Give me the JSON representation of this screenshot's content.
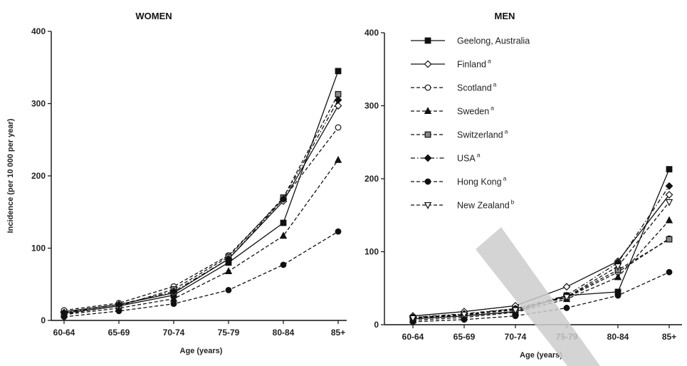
{
  "chart_data": [
    {
      "type": "line",
      "title": "WOMEN",
      "xlabel": "Age (years)",
      "ylabel": "Incidence (per 10 000 per year)",
      "categories": [
        "60-64",
        "65-69",
        "70-74",
        "75-79",
        "80-84",
        "85+"
      ],
      "ylim": [
        0,
        400
      ],
      "yticks": [
        "0",
        "100",
        "200",
        "300",
        "400"
      ],
      "series": [
        {
          "name": "Geelong, Australia",
          "marker": "square-filled",
          "dash": "solid",
          "values": [
            10,
            20,
            35,
            80,
            135,
            345
          ]
        },
        {
          "name": "Finland",
          "sup": "a",
          "marker": "diamond-open",
          "dash": "solid",
          "values": [
            12,
            22,
            38,
            85,
            165,
            297
          ]
        },
        {
          "name": "Scotland",
          "sup": "a",
          "marker": "circle-open",
          "dash": "dashed",
          "values": [
            14,
            24,
            47,
            90,
            168,
            267
          ]
        },
        {
          "name": "Sweden",
          "sup": "a",
          "marker": "triangle-filled",
          "dash": "dashed",
          "values": [
            8,
            17,
            30,
            68,
            117,
            222
          ]
        },
        {
          "name": "Switzerland",
          "sup": "a",
          "marker": "square-gray",
          "dash": "dashed",
          "values": [
            9,
            20,
            43,
            88,
            170,
            313
          ]
        },
        {
          "name": "USA",
          "sup": "a",
          "marker": "diamond-filled",
          "dash": "dashdot",
          "values": [
            11,
            22,
            40,
            85,
            168,
            305
          ]
        },
        {
          "name": "Hong Kong",
          "sup": "a",
          "marker": "circle-filled",
          "dash": "dashed",
          "values": [
            5,
            13,
            23,
            42,
            77,
            123
          ]
        }
      ]
    },
    {
      "type": "line",
      "title": "MEN",
      "xlabel": "Age (years)",
      "ylabel": "",
      "categories": [
        "60-64",
        "65-69",
        "70-74",
        "75-79",
        "80-84",
        "85+"
      ],
      "ylim": [
        0,
        400
      ],
      "yticks": [
        "0",
        "100",
        "200",
        "300",
        "400"
      ],
      "series": [
        {
          "name": "Geelong, Australia",
          "marker": "square-filled",
          "dash": "solid",
          "values": [
            8,
            12,
            18,
            40,
            45,
            213
          ]
        },
        {
          "name": "Finland",
          "sup": "a",
          "marker": "diamond-open",
          "dash": "solid",
          "values": [
            12,
            18,
            26,
            52,
            87,
            178
          ]
        },
        {
          "name": "Scotland",
          "sup": "a",
          "marker": "circle-open",
          "dash": "dashed",
          "values": [
            10,
            14,
            22,
            37,
            72,
            118
          ]
        },
        {
          "name": "Sweden",
          "sup": "a",
          "marker": "triangle-filled",
          "dash": "dashed",
          "values": [
            6,
            10,
            17,
            35,
            65,
            143
          ]
        },
        {
          "name": "Switzerland",
          "sup": "a",
          "marker": "square-gray",
          "dash": "dashed",
          "values": [
            9,
            13,
            21,
            38,
            75,
            117
          ]
        },
        {
          "name": "USA",
          "sup": "a",
          "marker": "diamond-filled",
          "dash": "dashdot",
          "values": [
            10,
            15,
            22,
            40,
            85,
            190
          ]
        },
        {
          "name": "Hong Kong",
          "sup": "a",
          "marker": "circle-filled",
          "dash": "dashed",
          "values": [
            4,
            7,
            12,
            23,
            40,
            72
          ]
        },
        {
          "name": "New Zealand",
          "sup": "b",
          "marker": "triangle-down-open",
          "dash": "dashed",
          "values": [
            9,
            14,
            20,
            38,
            80,
            168
          ]
        }
      ]
    }
  ],
  "legend": {
    "placement": "top-left of MEN panel",
    "items": [
      {
        "name": "Geelong, Australia",
        "sup": "",
        "marker": "square-filled",
        "dash": "solid"
      },
      {
        "name": "Finland",
        "sup": "a",
        "marker": "diamond-open",
        "dash": "solid"
      },
      {
        "name": "Scotland",
        "sup": "a",
        "marker": "circle-open",
        "dash": "dashed"
      },
      {
        "name": "Sweden",
        "sup": "a",
        "marker": "triangle-filled",
        "dash": "dashed"
      },
      {
        "name": "Switzerland",
        "sup": "a",
        "marker": "square-gray",
        "dash": "dashed"
      },
      {
        "name": "USA",
        "sup": "a",
        "marker": "diamond-filled",
        "dash": "dashdot"
      },
      {
        "name": "Hong Kong",
        "sup": "a",
        "marker": "circle-filled",
        "dash": "dashed"
      },
      {
        "name": "New Zealand",
        "sup": "b",
        "marker": "triangle-down-open",
        "dash": "dashed"
      }
    ]
  },
  "colors": {
    "ink": "#111111",
    "gray_marker": "#888888",
    "overlay": "#cccccc"
  }
}
